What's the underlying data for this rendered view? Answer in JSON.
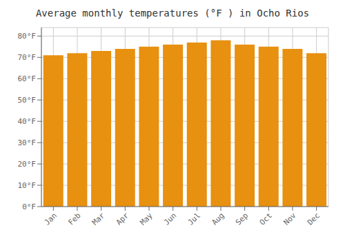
{
  "chart_data": {
    "type": "bar",
    "title": "Average monthly temperatures (°F ) in Ocho Rios",
    "categories": [
      "Jan",
      "Feb",
      "Mar",
      "Apr",
      "May",
      "Jun",
      "Jul",
      "Aug",
      "Sep",
      "Oct",
      "Nov",
      "Dec"
    ],
    "values": [
      71,
      72,
      73,
      74,
      75,
      76,
      77,
      78,
      76,
      75,
      74,
      72
    ],
    "color": "#E89010",
    "ylim": [
      0,
      84
    ],
    "yticks": [
      {
        "value": 0,
        "label": "0°F"
      },
      {
        "value": 10,
        "label": "10°F"
      },
      {
        "value": 20,
        "label": "20°F"
      },
      {
        "value": 30,
        "label": "30°F"
      },
      {
        "value": 40,
        "label": "40°F"
      },
      {
        "value": 50,
        "label": "50°F"
      },
      {
        "value": 60,
        "label": "60°F"
      },
      {
        "value": 70,
        "label": "70°F"
      },
      {
        "value": 80,
        "label": "80°F"
      }
    ],
    "grid": true
  }
}
